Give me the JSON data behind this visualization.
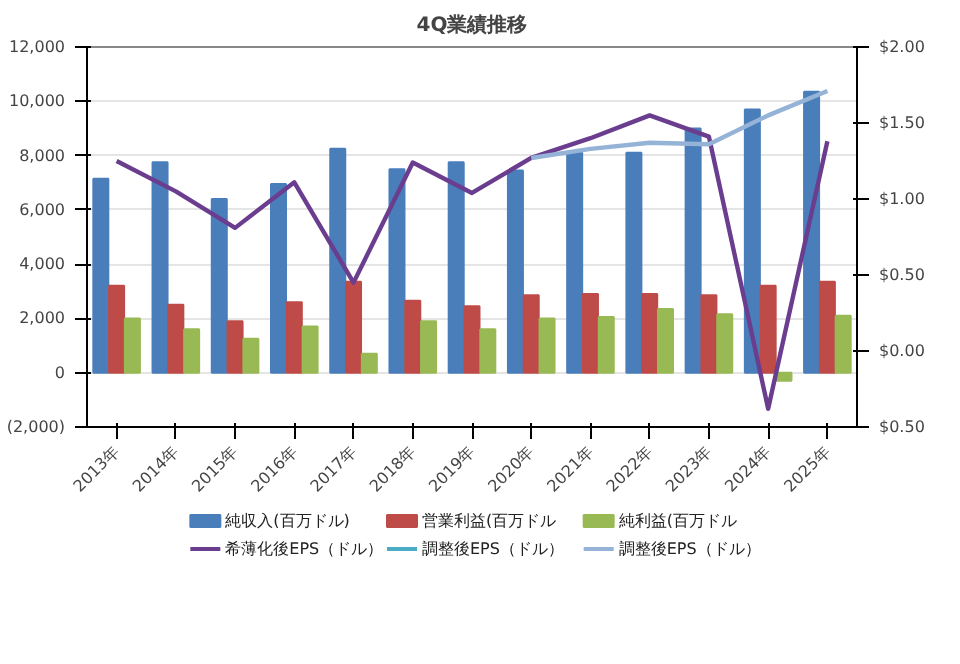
{
  "chart_data": {
    "type": "bar",
    "title": "4Q業績推移",
    "categories": [
      "2013年",
      "2014年",
      "2015年",
      "2016年",
      "2017年",
      "2018年",
      "2019年",
      "2020年",
      "2021年",
      "2022年",
      "2023年",
      "2024年",
      "2025年"
    ],
    "series": [
      {
        "name": "純収入(百万ドル)",
        "color": "#4a7ebb",
        "values": [
          7150,
          7750,
          6400,
          6950,
          8250,
          7500,
          7750,
          7450,
          8100,
          8100,
          9000,
          9700,
          10350
        ]
      },
      {
        "name": "営業利益(百万ドル",
        "color": "#be4b48",
        "values": [
          3200,
          2500,
          1900,
          2600,
          3350,
          2650,
          2450,
          2850,
          2900,
          2900,
          2850,
          3200,
          3350
        ]
      },
      {
        "name": "純利益(百万ドル",
        "color": "#98b954",
        "values": [
          2000,
          1600,
          1250,
          1700,
          700,
          1900,
          1600,
          2000,
          2050,
          2350,
          2150,
          -300,
          2100
        ]
      },
      {
        "name": "希薄化後EPS（ドル）",
        "type": "line",
        "axis": "y2",
        "color": "#6a3d8f",
        "values": [
          1.25,
          1.05,
          0.81,
          1.11,
          0.45,
          1.24,
          1.04,
          1.27,
          1.4,
          1.55,
          1.41,
          -0.38,
          1.38
        ]
      },
      {
        "name": "調整後EPS（ドル）",
        "type": "line",
        "axis": "y2",
        "color": "#4bacc6",
        "values": [
          null,
          null,
          null,
          null,
          null,
          null,
          null,
          null,
          null,
          null,
          null,
          null,
          null
        ]
      },
      {
        "name": "調整後EPS（ドル）",
        "type": "line",
        "axis": "y2",
        "color": "#95b3d7",
        "values": [
          null,
          null,
          null,
          null,
          null,
          null,
          null,
          1.27,
          1.33,
          1.37,
          1.36,
          1.55,
          1.71
        ]
      }
    ],
    "ylim": [
      -2000,
      12000
    ],
    "yticks": [
      {
        "value": -2000,
        "label": "(2,000)"
      },
      "0",
      {
        "value": 2000,
        "label": "2,000"
      },
      {
        "value": 4000,
        "label": "4,000"
      },
      {
        "value": 6000,
        "label": "6,000"
      },
      {
        "value": 8000,
        "label": "8,000"
      },
      {
        "value": 10000,
        "label": "10,000"
      },
      {
        "value": 12000,
        "label": "12,000"
      }
    ],
    "y2lim": [
      -0.5,
      2
    ],
    "y2ticks": [
      {
        "value": -0.5,
        "label": "$0.50"
      },
      {
        "value": 0,
        "label": "$0.00"
      },
      {
        "value": 0.5,
        "label": "$0.50"
      },
      {
        "value": 1,
        "label": "$1.00"
      },
      {
        "value": 1.5,
        "label": "$1.50"
      },
      {
        "value": 2,
        "label": "$2.00"
      }
    ],
    "grid": "y",
    "legend": "bottom"
  }
}
